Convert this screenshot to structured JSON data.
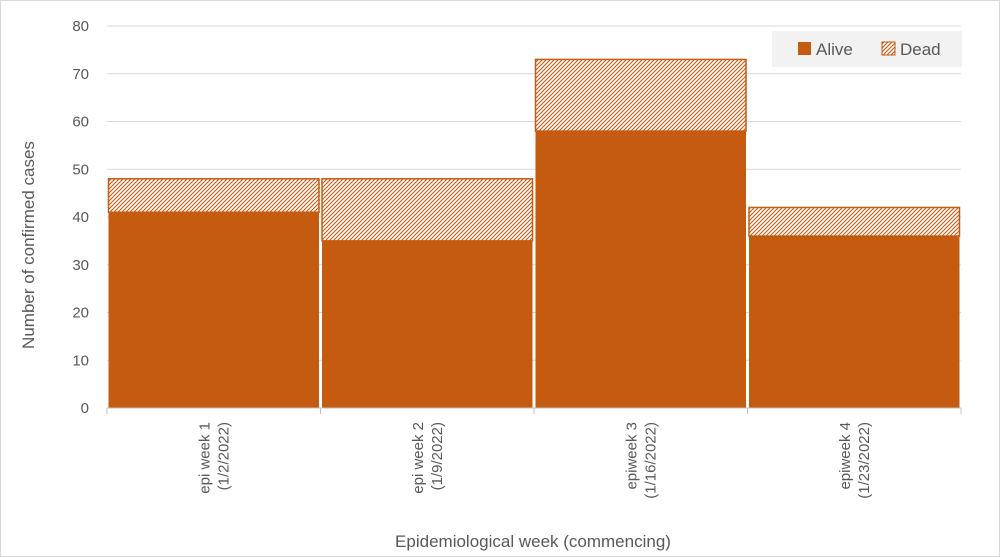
{
  "chart_data": {
    "type": "bar",
    "stacked": true,
    "categories": [
      [
        "epi week 1",
        "(1/2/2022)"
      ],
      [
        "epi week 2",
        "(1/9/2022)"
      ],
      [
        "epiweek 3",
        "(1/16/2022)"
      ],
      [
        "epiweek 4",
        "(1/23/2022)"
      ]
    ],
    "series": [
      {
        "name": "Alive",
        "values": [
          41,
          35,
          58,
          36
        ],
        "color": "#C55A11",
        "pattern": "solid"
      },
      {
        "name": "Dead",
        "values": [
          7,
          13,
          15,
          6
        ],
        "color": "#C55A11",
        "pattern": "hatched"
      }
    ],
    "title": "",
    "xlabel": "Epidemiological week (commencing)",
    "ylabel": "Number of confirmed cases",
    "ylim": [
      0,
      80
    ],
    "yticks": [
      0,
      10,
      20,
      30,
      40,
      50,
      60,
      70,
      80
    ],
    "grid": true,
    "legend": "top-right"
  }
}
